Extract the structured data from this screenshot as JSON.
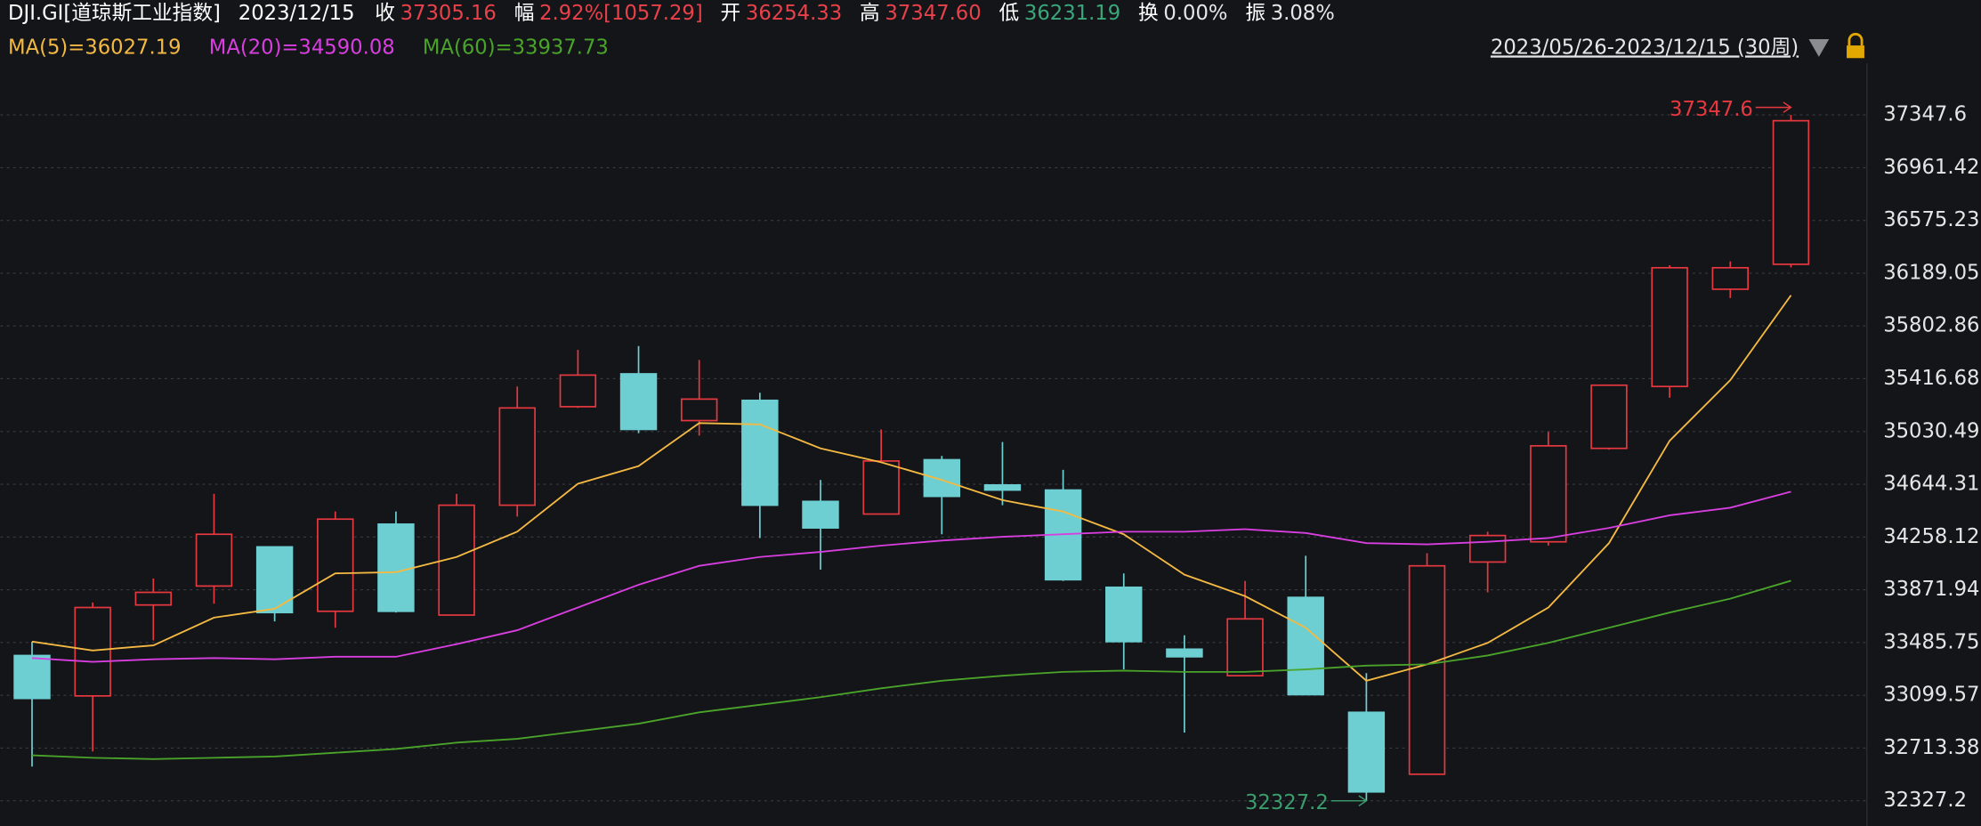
{
  "header": {
    "symbol": "DJI.GI[道琼斯工业指数]",
    "date": "2023/12/15",
    "fields": [
      {
        "label": "收",
        "value": "37305.16",
        "color": "#e8414a"
      },
      {
        "label": "幅",
        "value": "2.92%[1057.29]",
        "color": "#e8414a"
      },
      {
        "label": "开",
        "value": "36254.33",
        "color": "#e8414a"
      },
      {
        "label": "高",
        "value": "37347.60",
        "color": "#e8414a"
      },
      {
        "label": "低",
        "value": "36231.19",
        "color": "#3aa77a"
      },
      {
        "label": "换",
        "value": "0.00%",
        "color": "#e6e6e6"
      },
      {
        "label": "振",
        "value": "3.08%",
        "color": "#e6e6e6"
      }
    ]
  },
  "chart_data": {
    "type": "candlestick",
    "period": "2023/05/26-2023/12/15 (30周)",
    "ylim": [
      32142.7,
      37726.6
    ],
    "yticks": [
      37347.6,
      36961.42,
      36575.23,
      36189.05,
      35802.86,
      35416.68,
      35030.49,
      34644.31,
      34258.12,
      33871.94,
      33485.75,
      33099.57,
      32713.38,
      32327.2
    ],
    "grid": true,
    "ohlc": {
      "up_color": "#e5383f",
      "down_color": "#6dcfd2",
      "open": [
        33390.7,
        33094.9,
        33760.5,
        33899.2,
        34185.8,
        33714.3,
        34352.2,
        33686.6,
        34490.9,
        35212,
        35452.4,
        35110.3,
        35258.2,
        34518.6,
        34426.2,
        34823.7,
        34638.8,
        34601.8,
        33890,
        33437,
        33242.8,
        33816,
        32974.7,
        32521.7,
        34074.9,
        34222.8,
        34906.9,
        35360,
        36071.8,
        36254.33
      ],
      "high": [
        33492.4,
        33779,
        33954.7,
        34574,
        34185.8,
        34444.7,
        34444.7,
        34574,
        35360,
        35628,
        35655.8,
        35554,
        35313.7,
        34675.8,
        35045.6,
        34851.5,
        34953.2,
        34749.8,
        33991.7,
        33538.7,
        33936.2,
        34121,
        33261.3,
        34139.6,
        34297,
        35027,
        35369.2,
        36247.5,
        36275.3,
        37347.6
      ],
      "low": [
        32577.2,
        32688,
        33501.7,
        33769.8,
        33640.3,
        33594,
        33705,
        33686.6,
        34407.7,
        35202.8,
        35018,
        35000.4,
        34250.5,
        34019.4,
        34426.2,
        34278.2,
        34490.9,
        33936.2,
        33289,
        32826.8,
        33242.8,
        33104.2,
        32327.2,
        32521.7,
        33853,
        34195,
        34897.7,
        35277,
        36007,
        36231.19
      ],
      "close": [
        33076.4,
        33742.1,
        33853,
        34278.2,
        33705,
        34389,
        33714.3,
        34490.9,
        35202.8,
        35443.2,
        35045.6,
        35267.5,
        34490.9,
        34324.5,
        34814.5,
        34555.6,
        34601.8,
        33945.4,
        33492.4,
        33381.5,
        33658.8,
        33104.2,
        32392.2,
        34047,
        34269,
        34925.4,
        35369.2,
        36229,
        36229,
        37305.16
      ]
    },
    "series": [
      {
        "name": "MA(5)=36027.19",
        "color": "#f4b942",
        "values": [
          33492.4,
          33427.7,
          33464.7,
          33668.1,
          33732.8,
          33991.7,
          34000.9,
          34111.9,
          34296.8,
          34648.1,
          34777.5,
          35091.8,
          35082.6,
          34906.9,
          34805.2,
          34675.8,
          34527.9,
          34444.7,
          34278.3,
          33982.4,
          33825.3,
          33594.1,
          33205.8,
          33326,
          33483.2,
          33742.1,
          34213.5,
          34962.4,
          35406.2,
          36027.19
        ]
      },
      {
        "name": "MA(20)=34590.08",
        "color": "#d83ee0",
        "values": [
          33372.3,
          33344.5,
          33363,
          33372.3,
          33363,
          33381.5,
          33381.5,
          33474,
          33575.7,
          33742.1,
          33908.5,
          34047.1,
          34111.9,
          34148.9,
          34195.1,
          34232.1,
          34259.8,
          34278.3,
          34296.8,
          34296.8,
          34315.4,
          34287.6,
          34213.5,
          34204.3,
          34222.8,
          34250.5,
          34324.5,
          34416.9,
          34472.4,
          34590.08
        ]
      },
      {
        "name": "MA(60)=33937.73",
        "color": "#4aa42a",
        "values": [
          32660.4,
          32641.9,
          32632.6,
          32641.9,
          32651.1,
          32678.9,
          32706.6,
          32752.8,
          32780.6,
          32836,
          32891.5,
          32974.7,
          33030.2,
          33085.7,
          33150.4,
          33205.8,
          33242.8,
          33270.6,
          33279.8,
          33270.6,
          33270.6,
          33289,
          33316.8,
          33326,
          33390.7,
          33483.2,
          33594.1,
          33705,
          33806.8,
          33937.73
        ]
      }
    ],
    "annotations": [
      {
        "text": "37347.6",
        "color": "#e5383f"
      },
      {
        "text": "32327.2",
        "color": "#3b9d6e"
      }
    ]
  }
}
